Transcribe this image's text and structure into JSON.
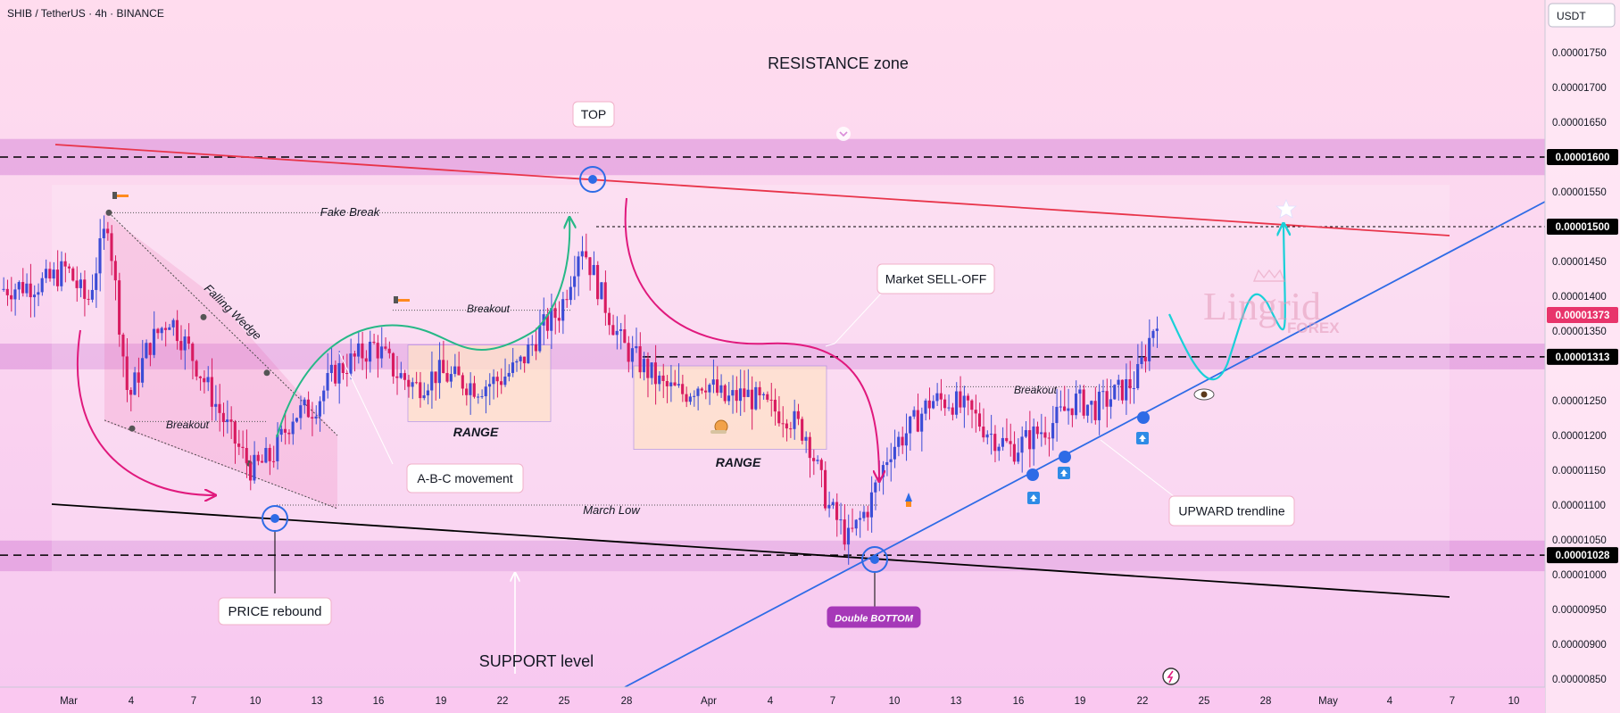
{
  "header": {
    "title": "SHIB / TetherUS · 4h · BINANCE",
    "currency_button": "USDT"
  },
  "watermark": {
    "text": "Lingrid",
    "sub": "FOREX"
  },
  "annotations": {
    "resistance_zone": "RESISTANCE zone",
    "support_level": "SUPPORT level",
    "top": "TOP",
    "fake_break": "Fake Break",
    "falling_wedge": "Falling Wedge",
    "breakout": "Breakout",
    "range": "RANGE",
    "abc": "A-B-C movement",
    "market_selloff": "Market SELL-OFF",
    "march_low": "March Low",
    "price_rebound": "PRICE rebound",
    "double_bottom": "Double BOTTOM",
    "upward_trendline": "UPWARD trendline"
  },
  "colors": {
    "zone": "#d98bd8",
    "resistance_line": "#e8344a",
    "trend_line": "#2e6be6",
    "support_line": "#000000",
    "up_candle": "#3b4cd6",
    "down_candle": "#d81b60",
    "projection": "#19d0d8",
    "current_price": "#e8346b"
  },
  "chart_data": {
    "type": "candlestick",
    "symbol": "SHIB / TetherUS",
    "timeframe": "4h",
    "y_axis_ticks": [
      "0.00001750",
      "0.00001700",
      "0.00001650",
      "0.00001550",
      "0.00001450",
      "0.00001400",
      "0.00001350",
      "0.00001250",
      "0.00001200",
      "0.00001150",
      "0.00001100",
      "0.00001050",
      "0.00001000",
      "0.00000950",
      "0.00000900",
      "0.00000850"
    ],
    "price_labels": [
      {
        "value": "0.00001600",
        "kind": "level"
      },
      {
        "value": "0.00001500",
        "kind": "level"
      },
      {
        "value": "0.00001373",
        "kind": "current"
      },
      {
        "value": "0.00001313",
        "kind": "level"
      },
      {
        "value": "0.00001028",
        "kind": "level"
      }
    ],
    "x_axis_ticks": [
      "Mar",
      "4",
      "7",
      "10",
      "13",
      "16",
      "19",
      "22",
      "25",
      "28",
      "Apr",
      "4",
      "7",
      "10",
      "13",
      "16",
      "19",
      "22",
      "25",
      "28",
      "May",
      "4",
      "7",
      "10"
    ],
    "close_path": [
      [
        "Feb 28",
        1.42e-05
      ],
      [
        "Mar 1",
        1.44e-05
      ],
      [
        "Mar 2",
        1.39e-05
      ],
      [
        "Mar 3",
        1.51e-05
      ],
      [
        "Mar 4",
        1.25e-05
      ],
      [
        "Mar 5",
        1.33e-05
      ],
      [
        "Mar 6",
        1.37e-05
      ],
      [
        "Mar 7",
        1.32e-05
      ],
      [
        "Mar 8",
        1.26e-05
      ],
      [
        "Mar 9",
        1.2e-05
      ],
      [
        "Mar 10",
        1.15e-05
      ],
      [
        "Mar 11",
        1.17e-05
      ],
      [
        "Mar 12",
        1.23e-05
      ],
      [
        "Mar 13",
        1.24e-05
      ],
      [
        "Mar 14",
        1.29e-05
      ],
      [
        "Mar 15",
        1.31e-05
      ],
      [
        "Mar 16",
        1.33e-05
      ],
      [
        "Mar 17",
        1.29e-05
      ],
      [
        "Mar 18",
        1.27e-05
      ],
      [
        "Mar 19",
        1.29e-05
      ],
      [
        "Mar 20",
        1.28e-05
      ],
      [
        "Mar 21",
        1.27e-05
      ],
      [
        "Mar 22",
        1.28e-05
      ],
      [
        "Mar 23",
        1.3e-05
      ],
      [
        "Mar 24",
        1.35e-05
      ],
      [
        "Mar 25",
        1.38e-05
      ],
      [
        "Mar 26",
        1.48e-05
      ],
      [
        "Mar 27",
        1.4e-05
      ],
      [
        "Mar 28",
        1.33e-05
      ],
      [
        "Mar 29",
        1.3e-05
      ],
      [
        "Mar 30",
        1.27e-05
      ],
      [
        "Mar 31",
        1.26e-05
      ],
      [
        "Apr 1",
        1.28e-05
      ],
      [
        "Apr 2",
        1.25e-05
      ],
      [
        "Apr 3",
        1.26e-05
      ],
      [
        "Apr 4",
        1.24e-05
      ],
      [
        "Apr 5",
        1.23e-05
      ],
      [
        "Apr 6",
        1.2e-05
      ],
      [
        "Apr 7",
        1.1e-05
      ],
      [
        "Apr 8",
        1.05e-05
      ],
      [
        "Apr 9",
        1.1e-05
      ],
      [
        "Apr 10",
        1.18e-05
      ],
      [
        "Apr 11",
        1.21e-05
      ],
      [
        "Apr 12",
        1.25e-05
      ],
      [
        "Apr 13",
        1.25e-05
      ],
      [
        "Apr 14",
        1.23e-05
      ],
      [
        "Apr 15",
        1.2e-05
      ],
      [
        "Apr 16",
        1.18e-05
      ],
      [
        "Apr 17",
        1.2e-05
      ],
      [
        "Apr 18",
        1.22e-05
      ],
      [
        "Apr 19",
        1.25e-05
      ],
      [
        "Apr 20",
        1.24e-05
      ],
      [
        "Apr 21",
        1.26e-05
      ],
      [
        "Apr 22",
        1.28e-05
      ],
      [
        "Apr 23",
        1.373e-05
      ]
    ]
  }
}
